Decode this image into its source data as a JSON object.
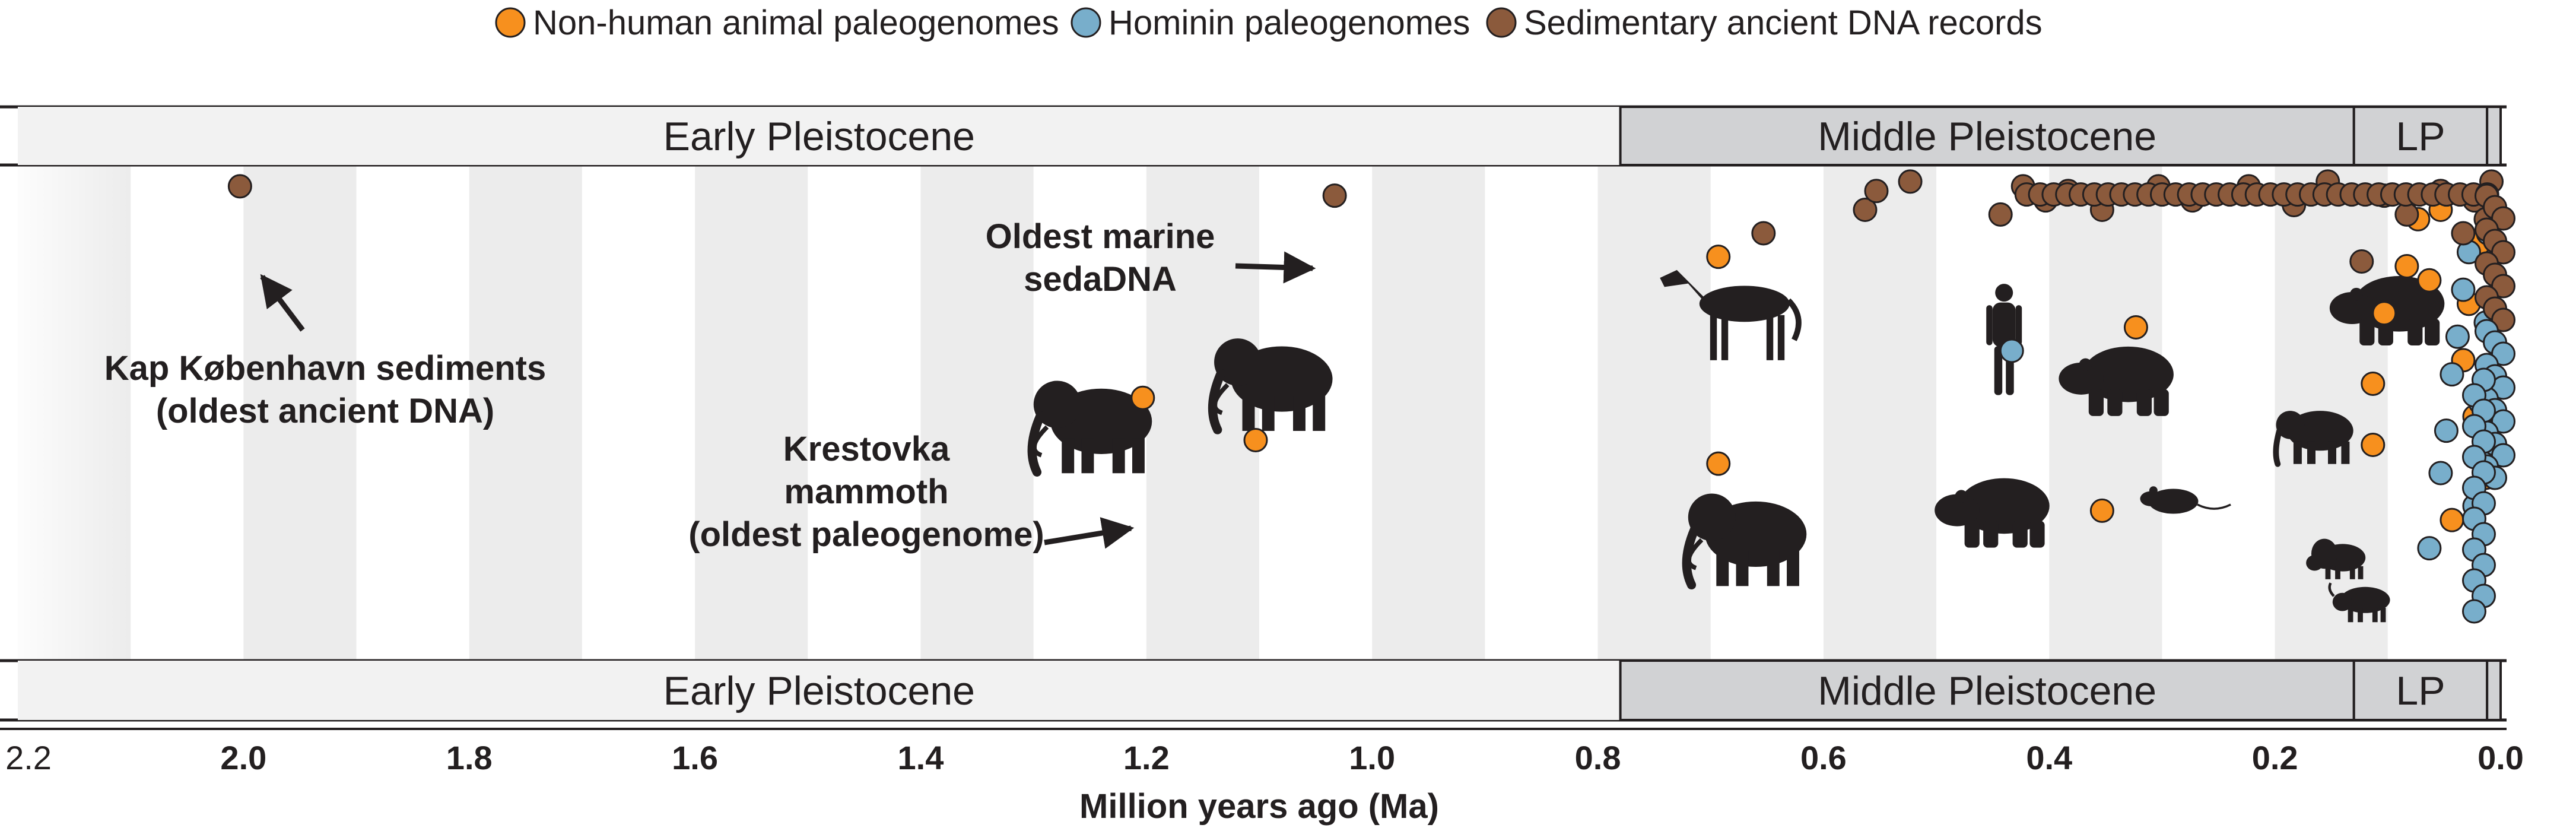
{
  "chart_data": {
    "type": "scatter",
    "xlabel": "Million years ago (Ma)",
    "xlim": [
      2.2,
      0.0
    ],
    "x_reversed": true,
    "grid": "alternating vertical bands every 0.1 Ma",
    "legend_position": "top-center",
    "x_ticks": [
      {
        "value": 2.2,
        "label": "2.2"
      },
      {
        "value": 2.0,
        "label": "2.0"
      },
      {
        "value": 1.8,
        "label": "1.8"
      },
      {
        "value": 1.6,
        "label": "1.6"
      },
      {
        "value": 1.4,
        "label": "1.4"
      },
      {
        "value": 1.2,
        "label": "1.2"
      },
      {
        "value": 1.0,
        "label": "1.0"
      },
      {
        "value": 0.8,
        "label": "0.8"
      },
      {
        "value": 0.6,
        "label": "0.6"
      },
      {
        "value": 0.4,
        "label": "0.4"
      },
      {
        "value": 0.2,
        "label": "0.2"
      },
      {
        "value": 0.0,
        "label": "0.0"
      }
    ],
    "epochs": [
      {
        "name": "Early Pleistocene",
        "start": 2.2,
        "end": 0.78
      },
      {
        "name": "Middle Pleistocene",
        "start": 0.78,
        "end": 0.13
      },
      {
        "name": "LP",
        "start": 0.13,
        "end": 0.012
      }
    ],
    "series": [
      {
        "name": "Non-human animal paleogenomes",
        "color": "#f7901e",
        "points": [
          {
            "x": 1.2,
            "row": 0.53
          },
          {
            "x": 1.1,
            "row": 0.44
          },
          {
            "x": 0.69,
            "row": 0.39
          },
          {
            "x": 0.69,
            "row": 0.83
          },
          {
            "x": 0.35,
            "row": 0.29
          },
          {
            "x": 0.32,
            "row": 0.68
          },
          {
            "x": 0.11,
            "row": 0.43
          },
          {
            "x": 0.11,
            "row": 0.56
          },
          {
            "x": 0.1,
            "row": 0.71
          },
          {
            "x": 0.08,
            "row": 0.81
          },
          {
            "x": 0.07,
            "row": 0.91
          },
          {
            "x": 0.06,
            "row": 0.78
          },
          {
            "x": 0.05,
            "row": 0.93
          },
          {
            "x": 0.04,
            "row": 0.27
          },
          {
            "x": 0.03,
            "row": 0.61
          },
          {
            "x": 0.025,
            "row": 0.73
          },
          {
            "x": 0.02,
            "row": 0.49
          },
          {
            "x": 0.015,
            "row": 0.86
          },
          {
            "x": 0.01,
            "row": 0.36
          }
        ]
      },
      {
        "name": "Hominin paleogenomes",
        "color": "#78aecb",
        "points": [
          {
            "x": 0.43,
            "row": 0.63
          },
          {
            "x": 0.06,
            "row": 0.21
          },
          {
            "x": 0.05,
            "row": 0.37
          },
          {
            "x": 0.045,
            "row": 0.46
          },
          {
            "x": 0.04,
            "row": 0.58
          },
          {
            "x": 0.035,
            "row": 0.66
          },
          {
            "x": 0.03,
            "row": 0.76
          },
          {
            "x": 0.025,
            "row": 0.84
          },
          {
            "x": 0.02,
            "row": 0.3
          },
          {
            "x": 0.015,
            "row": 0.52
          },
          {
            "x": 0.01,
            "row": 0.69
          },
          {
            "x": 0.008,
            "row": 0.88
          },
          {
            "x": 0.005,
            "row": 0.42
          }
        ]
      },
      {
        "name": "Sedimentary ancient DNA records",
        "color": "#8b5a3c",
        "points": [
          {
            "x": 2.0,
            "row": 0.98
          },
          {
            "x": 1.03,
            "row": 0.96
          },
          {
            "x": 0.65,
            "row": 0.88
          },
          {
            "x": 0.56,
            "row": 0.93
          },
          {
            "x": 0.55,
            "row": 0.97
          },
          {
            "x": 0.52,
            "row": 0.99
          },
          {
            "x": 0.44,
            "row": 0.92
          },
          {
            "x": 0.42,
            "row": 0.98
          },
          {
            "x": 0.4,
            "row": 0.95
          },
          {
            "x": 0.38,
            "row": 0.97
          },
          {
            "x": 0.35,
            "row": 0.93
          },
          {
            "x": 0.3,
            "row": 0.98
          },
          {
            "x": 0.27,
            "row": 0.95
          },
          {
            "x": 0.22,
            "row": 0.98
          },
          {
            "x": 0.18,
            "row": 0.94
          },
          {
            "x": 0.15,
            "row": 0.99
          },
          {
            "x": 0.12,
            "row": 0.82
          },
          {
            "x": 0.1,
            "row": 0.96
          },
          {
            "x": 0.08,
            "row": 0.92
          },
          {
            "x": 0.05,
            "row": 0.97
          },
          {
            "x": 0.03,
            "row": 0.88
          },
          {
            "x": 0.02,
            "row": 0.95
          },
          {
            "x": 0.01,
            "row": 0.91
          },
          {
            "x": 0.005,
            "row": 0.99
          }
        ]
      }
    ],
    "annotations": [
      {
        "text": [
          "Kap København sediments",
          "(oldest ancient DNA)"
        ],
        "target_x": 2.0
      },
      {
        "text": [
          "Oldest marine",
          "sedaDNA"
        ],
        "target_x": 1.03
      },
      {
        "text": [
          "Krestovka",
          "mammoth",
          "(oldest paleogenome)"
        ],
        "target_x": 1.2
      }
    ],
    "icons": [
      {
        "name": "mammoth-icon",
        "x": 1.24
      },
      {
        "name": "mammoth-icon",
        "x": 1.08
      },
      {
        "name": "horse-icon",
        "x": 0.67
      },
      {
        "name": "mammoth-icon",
        "x": 0.66
      },
      {
        "name": "hominin-icon",
        "x": 0.44
      },
      {
        "name": "bear-icon",
        "x": 0.44
      },
      {
        "name": "bear-icon",
        "x": 0.33
      },
      {
        "name": "rodent-icon",
        "x": 0.29
      },
      {
        "name": "elephant-icon",
        "x": 0.16
      },
      {
        "name": "bear-icon",
        "x": 0.09
      },
      {
        "name": "bison-icon",
        "x": 0.14
      },
      {
        "name": "muskox-icon",
        "x": 0.12
      }
    ]
  }
}
